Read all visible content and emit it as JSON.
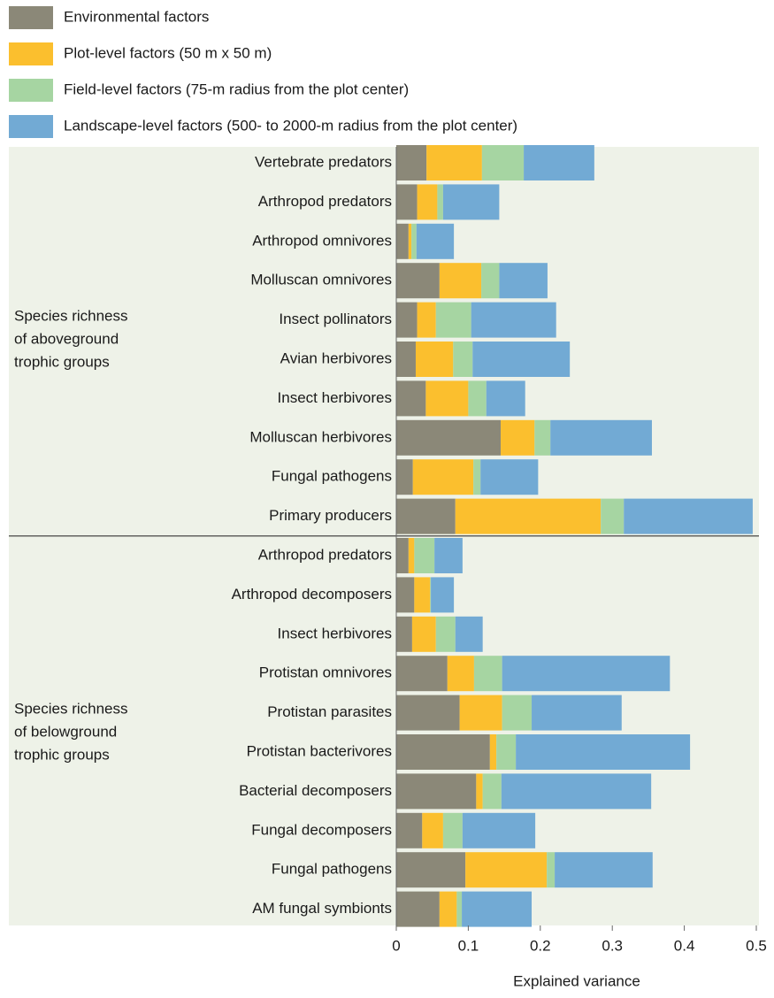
{
  "chart_data": {
    "type": "bar",
    "orientation": "horizontal",
    "stacked": true,
    "xlabel": "Explained variance",
    "xlim": [
      0,
      0.5
    ],
    "xticks": [
      0,
      0.1,
      0.2,
      0.3,
      0.4,
      0.5
    ],
    "series": [
      {
        "name": "Environmental factors",
        "color": "#8b8878"
      },
      {
        "name": "Plot-level factors (50 m x 50 m)",
        "color": "#fbbf2e"
      },
      {
        "name": "Field-level factors (75-m radius from the plot center)",
        "color": "#a6d5a2"
      },
      {
        "name": "Landscape-level factors (500- to 2000-m radius from the plot center)",
        "color": "#72aad4"
      }
    ],
    "groups": [
      {
        "label": [
          "Species richness",
          "of aboveground",
          "trophic groups"
        ],
        "categories": [
          "Vertebrate predators",
          "Arthropod predators",
          "Arthropod omnivores",
          "Molluscan omnivores",
          "Insect pollinators",
          "Avian herbivores",
          "Insect herbivores",
          "Molluscan herbivores",
          "Fungal pathogens",
          "Primary producers"
        ],
        "values": [
          [
            0.042,
            0.029,
            0.017,
            0.06,
            0.029,
            0.027,
            0.041,
            0.145,
            0.023,
            0.082
          ],
          [
            0.077,
            0.028,
            0.004,
            0.058,
            0.026,
            0.052,
            0.059,
            0.047,
            0.084,
            0.202
          ],
          [
            0.058,
            0.008,
            0.007,
            0.025,
            0.049,
            0.027,
            0.025,
            0.022,
            0.01,
            0.032
          ],
          [
            0.098,
            0.078,
            0.052,
            0.067,
            0.118,
            0.135,
            0.054,
            0.141,
            0.08,
            0.179
          ]
        ]
      },
      {
        "label": [
          "Species richness",
          "of belowground",
          "trophic groups"
        ],
        "categories": [
          "Arthropod predators",
          "Arthropod decomposers",
          "Insect herbivores",
          "Protistan omnivores",
          "Protistan parasites",
          "Protistan bacterivores",
          "Bacterial decomposers",
          "Fungal decomposers",
          "Fungal pathogens",
          "AM fungal symbionts"
        ],
        "values": [
          [
            0.017,
            0.025,
            0.022,
            0.071,
            0.088,
            0.13,
            0.111,
            0.036,
            0.096,
            0.06
          ],
          [
            0.008,
            0.022,
            0.033,
            0.037,
            0.059,
            0.009,
            0.009,
            0.029,
            0.113,
            0.024
          ],
          [
            0.028,
            0.001,
            0.027,
            0.039,
            0.041,
            0.027,
            0.026,
            0.027,
            0.011,
            0.007
          ],
          [
            0.039,
            0.032,
            0.038,
            0.233,
            0.125,
            0.242,
            0.208,
            0.101,
            0.136,
            0.097
          ]
        ]
      }
    ]
  }
}
